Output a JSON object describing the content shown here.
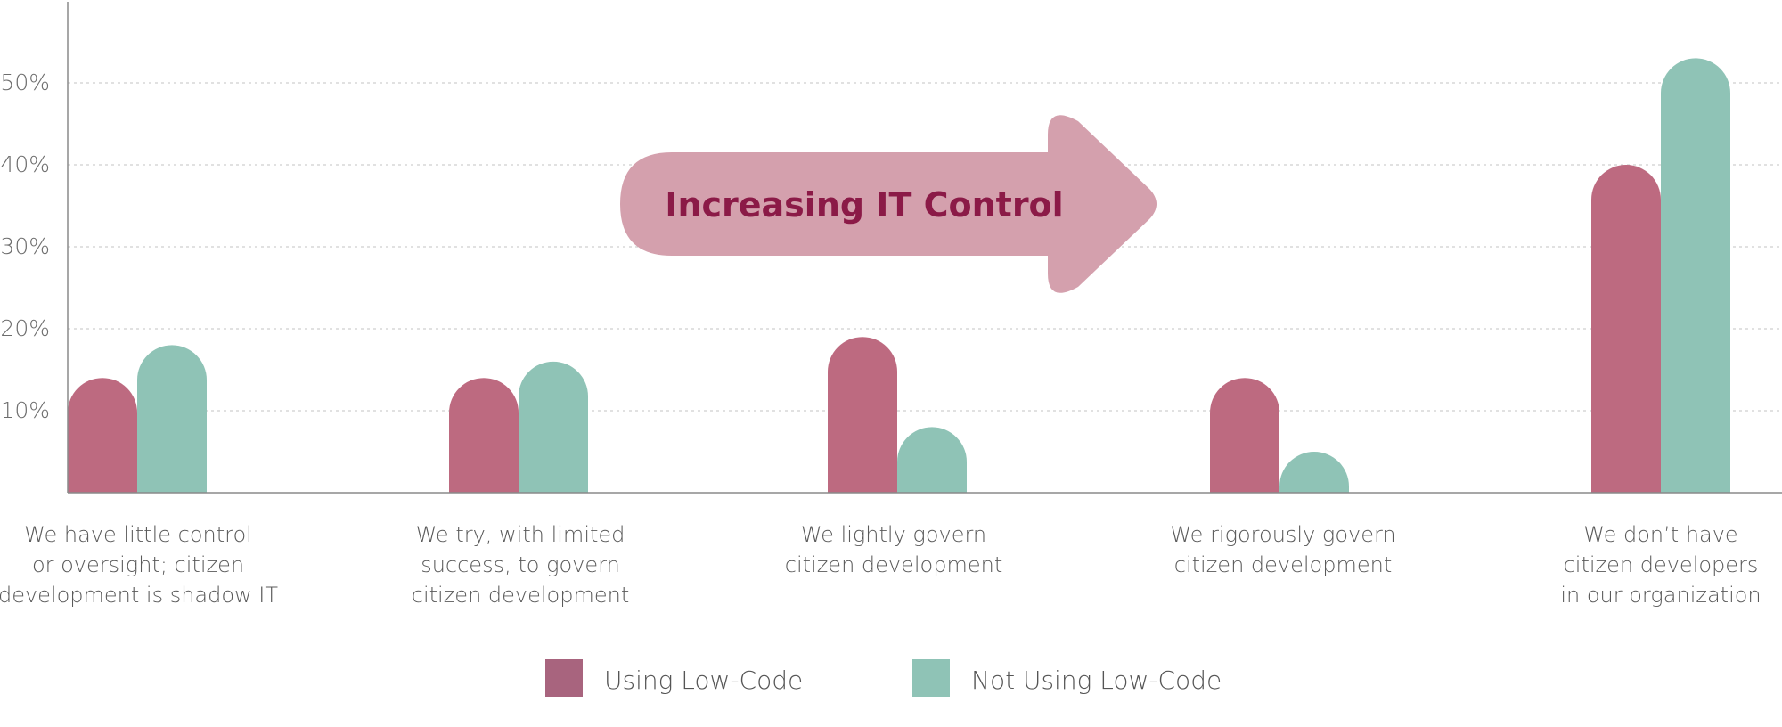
{
  "chart_data": {
    "type": "bar",
    "categories": [
      [
        "We have little control",
        "or oversight; citizen",
        "development is shadow IT"
      ],
      [
        "We try, with limited",
        "success, to govern",
        "citizen development"
      ],
      [
        "We lightly govern",
        "citizen development"
      ],
      [
        "We rigorously govern",
        "citizen development"
      ],
      [
        "We don’t have",
        "citizen developers",
        "in our organization"
      ]
    ],
    "series": [
      {
        "name": "Using Low-Code",
        "values": [
          14,
          14,
          19,
          14,
          40
        ],
        "color": "#bd6a80"
      },
      {
        "name": "Not Using Low-Code",
        "values": [
          18,
          16,
          8,
          5,
          53
        ],
        "color": "#8fc3b6"
      }
    ],
    "yticks": [
      10,
      20,
      30,
      40,
      50
    ],
    "ytick_labels": [
      "10%",
      "20%",
      "30%",
      "40%",
      "50%"
    ],
    "ylim": [
      0,
      60
    ],
    "grid": true,
    "legend_position": "bottom",
    "annotation": {
      "text": "Increasing IT Control",
      "color": "#d4a0ad",
      "text_color": "#8b1a47"
    },
    "title": "",
    "xlabel": "",
    "ylabel": ""
  }
}
